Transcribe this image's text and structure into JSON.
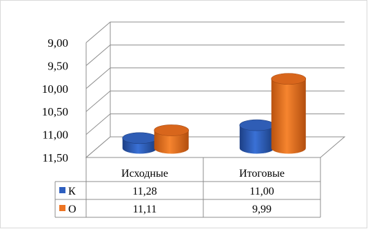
{
  "chart_data": {
    "type": "bar",
    "subtype": "3d-cylinder",
    "categories": [
      "Исходные",
      "Итоговые"
    ],
    "series": [
      {
        "name": "К",
        "values": [
          11.28,
          11.0
        ],
        "color": "#2E5FBF"
      },
      {
        "name": "О",
        "values": [
          11.11,
          9.99
        ],
        "color": "#ED7423"
      }
    ],
    "y_axis": {
      "reversed": true,
      "min": 9.0,
      "max": 11.5,
      "ticks": [
        "9,00",
        "9,50",
        "10,00",
        "10,50",
        "11,00",
        "11,50"
      ],
      "tick_values": [
        9.0,
        9.5,
        10.0,
        10.5,
        11.0,
        11.5
      ]
    },
    "data_table": {
      "rows": [
        {
          "series": "К",
          "cells": [
            "11,28",
            "11,00"
          ]
        },
        {
          "series": "О",
          "cells": [
            "11,11",
            "9,99"
          ]
        }
      ]
    },
    "grid": true,
    "legend": "data-table"
  }
}
